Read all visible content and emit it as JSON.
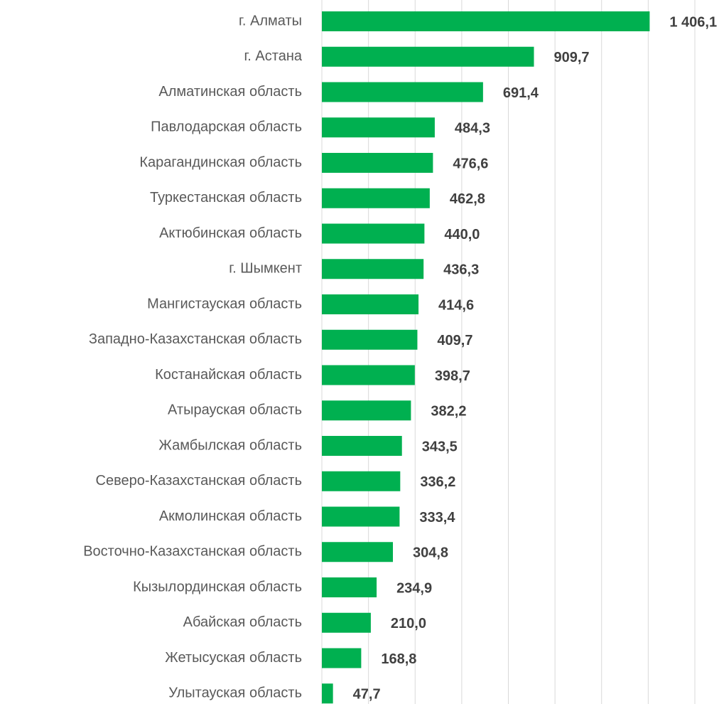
{
  "chart_data": {
    "type": "bar",
    "orientation": "horizontal",
    "categories": [
      "г. Алматы",
      "г. Астана",
      "Алматинская область",
      "Павлодарская область",
      "Карагандинская область",
      "Туркестанская область",
      "Актюбинская область",
      "г. Шымкент",
      "Мангистауская область",
      "Западно-Казахстанская область",
      "Костанайская область",
      "Атырауская область",
      "Жамбылская область",
      "Северо-Казахстанская область",
      "Акмолинская область",
      "Восточно-Казахстанская область",
      "Кызылординская область",
      "Абайская область",
      "Жетысуская область",
      "Улытауская область"
    ],
    "values": [
      1406.1,
      909.7,
      691.4,
      484.3,
      476.6,
      462.8,
      440.0,
      436.3,
      414.6,
      409.7,
      398.7,
      382.2,
      343.5,
      336.2,
      333.4,
      304.8,
      234.9,
      210.0,
      168.8,
      47.7
    ],
    "value_labels": [
      "1 406,1",
      "909,7",
      "691,4",
      "484,3",
      "476,6",
      "462,8",
      "440,0",
      "436,3",
      "414,6",
      "409,7",
      "398,7",
      "382,2",
      "343,5",
      "336,2",
      "333,4",
      "304,8",
      "234,9",
      "210,0",
      "168,8",
      "47,7"
    ],
    "color": "#00b050",
    "xlim": [
      0,
      1600
    ],
    "xticks": [
      0,
      200,
      400,
      600,
      800,
      1000,
      1200,
      1400,
      1600
    ],
    "grid": true
  }
}
